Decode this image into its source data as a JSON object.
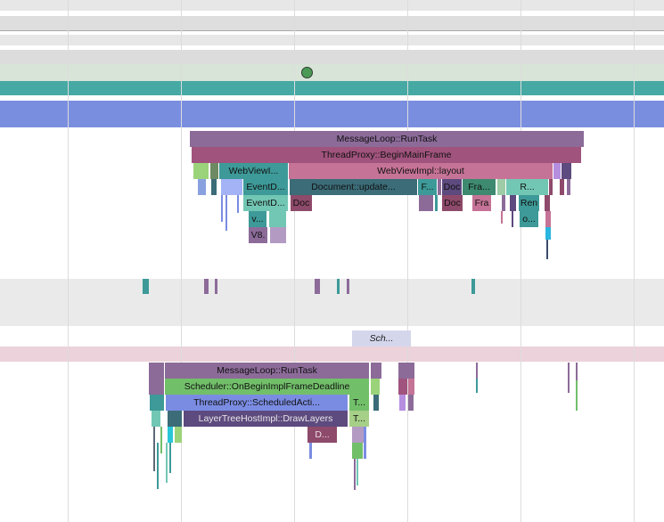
{
  "colors": {
    "purple": "#8c6b99",
    "magenta": "#a0537c",
    "pink_light": "#c57396",
    "teal": "#3d9a98",
    "teal_light": "#72c7b4",
    "dark_teal": "#3b6c78",
    "green": "#72bf6a",
    "blue": "#7a8ce2",
    "slate": "#5c6aa3",
    "dark_purple": "#5d4a7e",
    "plum": "#8e4a6a",
    "track_gray": "#e9e9e9",
    "track_sage": "#d8e4d8",
    "track_pink": "#ecd2da",
    "track_teal": "#46a9a4",
    "track_blue": "#7a8ee0"
  },
  "markers": [
    {
      "icon": "circle-marker-icon"
    }
  ],
  "upper": {
    "row0": [
      {
        "name": "message-loop-run-task-slice",
        "label": "MessageLoop::RunTask",
        "color": "#8c6b99"
      }
    ],
    "row1": [
      {
        "name": "thread-proxy-begin-main-frame-slice",
        "label": "ThreadProxy::BeginMainFrame",
        "color": "#a0537c"
      }
    ],
    "row2": [
      {
        "name": "small-slice",
        "label": "",
        "color": "#9bd37a"
      },
      {
        "name": "small-slice",
        "label": "",
        "color": "#6d8a62"
      },
      {
        "name": "web-view-impl-slice",
        "label": "WebViewI...",
        "color": "#3d9a98"
      },
      {
        "name": "web-view-impl-layout-slice",
        "label": "WebViewImpl::layout",
        "color": "#c57396"
      },
      {
        "name": "small-slice",
        "label": "",
        "color": "#b58ee0"
      },
      {
        "name": "small-slice",
        "label": "",
        "color": "#5d4a7e"
      }
    ],
    "row3": [
      {
        "name": "small-slice",
        "label": "",
        "color": "#8aa1e0"
      },
      {
        "name": "small-slice",
        "label": "",
        "color": "#3b6c78"
      },
      {
        "name": "small-slice",
        "label": "",
        "color": "#a3b3f5"
      },
      {
        "name": "event-dispatch-slice",
        "label": "EventD...",
        "color": "#3d9a98"
      },
      {
        "name": "document-update-slice",
        "label": "Document::update...",
        "color": "#3b6c78"
      },
      {
        "name": "f-slice",
        "label": "F...",
        "color": "#3d9a98"
      },
      {
        "name": "doc-slice",
        "label": "Doc",
        "color": "#5d4a7e"
      },
      {
        "name": "frame-slice",
        "label": "Fra...",
        "color": "#3d8a70"
      },
      {
        "name": "r-slice",
        "label": "R...",
        "color": "#72c7b4"
      },
      {
        "name": "small-slice",
        "label": "",
        "color": "#8e4a6a"
      }
    ],
    "row4": [
      {
        "name": "event-dispatch-slice",
        "label": "EventD...",
        "color": "#72c7b4"
      },
      {
        "name": "doc-slice",
        "label": "Doc",
        "color": "#8e4a6a"
      },
      {
        "name": "small-slice",
        "label": "",
        "color": "#8c6b99"
      },
      {
        "name": "doc-slice",
        "label": "Doc",
        "color": "#8e4a6a"
      },
      {
        "name": "fra-slice",
        "label": "Fra",
        "color": "#c57396"
      },
      {
        "name": "render-slice",
        "label": "Ren",
        "color": "#3d9a98"
      }
    ],
    "row5": [
      {
        "name": "v-slice",
        "label": "v...",
        "color": "#3d9a98"
      },
      {
        "name": "small-slice",
        "label": "",
        "color": "#72c7b4"
      },
      {
        "name": "o-slice",
        "label": "o...",
        "color": "#3d9a98"
      }
    ],
    "row6": [
      {
        "name": "v8-slice",
        "label": "V8.",
        "color": "#8c6b99"
      },
      {
        "name": "small-slice",
        "label": "",
        "color": "#b39ac3"
      }
    ]
  },
  "async_slice": {
    "label": "Sch..."
  },
  "lower": {
    "row0": [
      {
        "name": "message-loop-run-task-slice",
        "label": "MessageLoop::RunTask",
        "color": "#8c6b99"
      },
      {
        "name": "small-slice",
        "label": "",
        "color": "#8c6b99"
      },
      {
        "name": "small-slice",
        "label": "",
        "color": "#8c6b99"
      }
    ],
    "row1": [
      {
        "name": "scheduler-on-begin-impl-frame-deadline-slice",
        "label": "Scheduler::OnBeginImplFrameDeadline",
        "color": "#72bf6a"
      },
      {
        "name": "small-slice",
        "label": "",
        "color": "#c57396"
      }
    ],
    "row2": [
      {
        "name": "thread-proxy-scheduled-action-slice",
        "label": "ThreadProxy::ScheduledActi...",
        "color": "#7a8ce2"
      },
      {
        "name": "t-slice",
        "label": "T...",
        "color": "#72bf6a"
      }
    ],
    "row3": [
      {
        "name": "layer-tree-host-impl-draw-layers-slice",
        "label": "LayerTreeHostImpl::DrawLayers",
        "color": "#5d4a7e"
      },
      {
        "name": "t-slice",
        "label": "T...",
        "color": "#a6cf88"
      }
    ],
    "row4": [
      {
        "name": "d-slice",
        "label": "D...",
        "color": "#8e4a6a"
      }
    ]
  }
}
